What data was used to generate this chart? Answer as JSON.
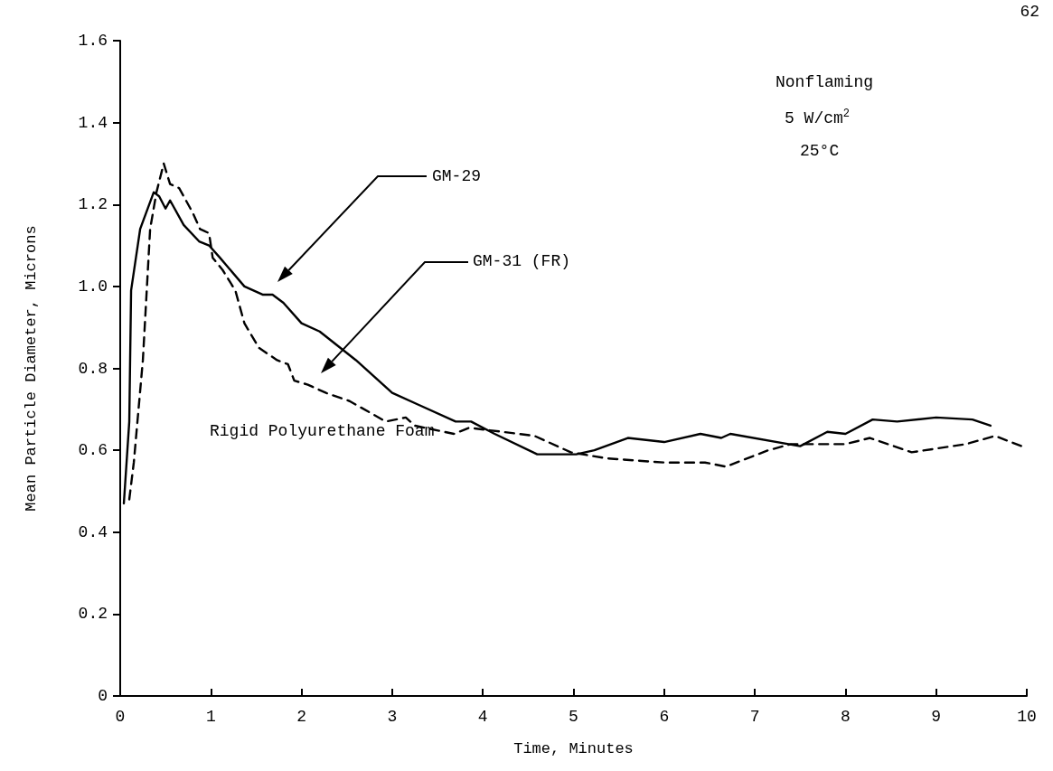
{
  "chart_data": {
    "type": "line",
    "xlabel": "Time, Minutes",
    "ylabel": "Mean Particle Diameter, Microns",
    "xlim": [
      0,
      10
    ],
    "xticks": [
      0,
      1,
      2,
      3,
      4,
      5,
      6,
      7,
      8,
      9,
      10
    ],
    "ylim": [
      0,
      1.6
    ],
    "yticks": [
      0,
      0.2,
      0.4,
      0.6,
      0.8,
      {
        "value": 1,
        "label": "1.0"
      },
      1.2,
      1.4,
      1.6
    ],
    "grid": false,
    "marker": "none",
    "series": [
      {
        "color": "#000000",
        "line_style": "solid",
        "x": [
          0.04,
          0.1,
          0.12,
          0.22,
          0.37,
          0.43,
          0.5,
          0.55,
          0.7,
          0.87,
          0.98,
          1.1,
          1.37,
          1.57,
          1.68,
          1.8,
          2.0,
          2.2,
          2.6,
          3.0,
          3.3,
          3.7,
          3.87,
          4.13,
          4.6,
          5.03,
          5.23,
          5.6,
          6.0,
          6.4,
          6.63,
          6.73,
          7.5,
          7.8,
          8.0,
          8.3,
          8.57,
          9.0,
          9.4,
          9.6
        ],
        "values": [
          0.47,
          0.67,
          0.99,
          1.14,
          1.23,
          1.22,
          1.19,
          1.21,
          1.15,
          1.11,
          1.1,
          1.07,
          1.0,
          0.98,
          0.98,
          0.96,
          0.91,
          0.89,
          0.82,
          0.74,
          0.71,
          0.67,
          0.67,
          0.64,
          0.59,
          0.59,
          0.6,
          0.63,
          0.62,
          0.64,
          0.63,
          0.64,
          0.61,
          0.645,
          0.64,
          0.675,
          0.67,
          0.68,
          0.675,
          0.66
        ]
      },
      {
        "color": "#000000",
        "line_style": "dashed",
        "x": [
          0.1,
          0.15,
          0.25,
          0.33,
          0.4,
          0.48,
          0.55,
          0.65,
          0.8,
          0.88,
          0.98,
          1.02,
          1.13,
          1.27,
          1.37,
          1.53,
          1.73,
          1.85,
          1.92,
          2.07,
          2.27,
          2.53,
          2.93,
          3.15,
          3.25,
          3.68,
          3.85,
          4.57,
          4.97,
          5.37,
          6.0,
          6.45,
          6.68,
          7.15,
          7.4,
          8.0,
          8.27,
          8.73,
          9.33,
          9.65,
          10.0
        ],
        "values": [
          0.48,
          0.57,
          0.82,
          1.14,
          1.23,
          1.3,
          1.25,
          1.24,
          1.18,
          1.14,
          1.13,
          1.07,
          1.04,
          0.99,
          0.91,
          0.85,
          0.82,
          0.81,
          0.77,
          0.76,
          0.74,
          0.72,
          0.67,
          0.68,
          0.66,
          0.64,
          0.655,
          0.635,
          0.595,
          0.58,
          0.57,
          0.57,
          0.56,
          0.6,
          0.615,
          0.615,
          0.63,
          0.595,
          0.615,
          0.635,
          0.605
        ]
      }
    ],
    "annotations": [
      "GM-29",
      "GM-31 (FR)",
      "Nonflaming",
      "5 W/cm$^{2}$",
      "25°C",
      "Rigid Polyurethane Foam",
      "62"
    ]
  }
}
